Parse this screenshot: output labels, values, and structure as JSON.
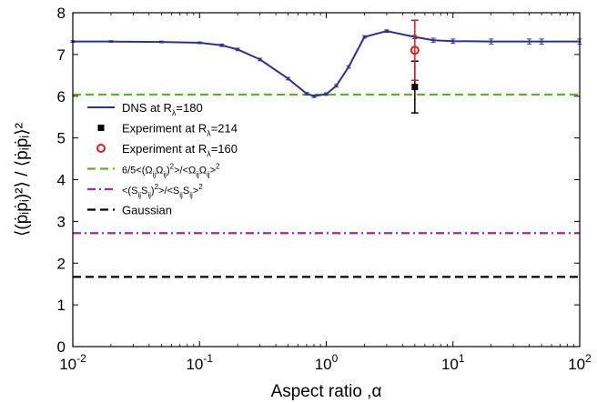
{
  "chart_data": {
    "type": "line",
    "xlabel": "Aspect ratio ,α",
    "ylabel": "⟨(ṗᵢṗᵢ)²⟩ / ⟨ṗᵢṗᵢ⟩²",
    "xscale": "log",
    "xlim": [
      0.01,
      100
    ],
    "ylim": [
      0,
      8
    ],
    "x_ticks": [
      0.01,
      0.1,
      1,
      10,
      100
    ],
    "x_tick_labels": [
      {
        "base": "10",
        "exp": "-2"
      },
      {
        "base": "10",
        "exp": "-1"
      },
      {
        "base": "10",
        "exp": "0"
      },
      {
        "base": "10",
        "exp": "1"
      },
      {
        "base": "10",
        "exp": "2"
      }
    ],
    "y_ticks": [
      0,
      1,
      2,
      3,
      4,
      5,
      6,
      7,
      8
    ],
    "y_tick_labels": [
      "0",
      "1",
      "2",
      "3",
      "4",
      "5",
      "6",
      "7",
      "8"
    ],
    "grid": false,
    "legend_position": "middle-left",
    "series": [
      {
        "kind": "line-errorbar",
        "color": "#2e3192",
        "legend": {
          "main": "DNS at  R",
          "sub": "λ",
          "rest": "=180"
        },
        "points": [
          {
            "x": 0.01,
            "y": 7.31,
            "err": 0.02
          },
          {
            "x": 0.02,
            "y": 7.31,
            "err": 0.02
          },
          {
            "x": 0.05,
            "y": 7.3,
            "err": 0.02
          },
          {
            "x": 0.1,
            "y": 7.28,
            "err": 0.02
          },
          {
            "x": 0.15,
            "y": 7.22,
            "err": 0.03
          },
          {
            "x": 0.2,
            "y": 7.12,
            "err": 0.03
          },
          {
            "x": 0.3,
            "y": 6.88,
            "err": 0.03
          },
          {
            "x": 0.5,
            "y": 6.42,
            "err": 0.03
          },
          {
            "x": 0.7,
            "y": 6.06,
            "err": 0.03
          },
          {
            "x": 0.8,
            "y": 6.0,
            "err": 0.03
          },
          {
            "x": 1.0,
            "y": 6.05,
            "err": 0.03
          },
          {
            "x": 1.2,
            "y": 6.25,
            "err": 0.03
          },
          {
            "x": 1.5,
            "y": 6.7,
            "err": 0.03
          },
          {
            "x": 2.0,
            "y": 7.42,
            "err": 0.03
          },
          {
            "x": 3.0,
            "y": 7.56,
            "err": 0.03
          },
          {
            "x": 5.0,
            "y": 7.42,
            "err": 0.04
          },
          {
            "x": 7.0,
            "y": 7.34,
            "err": 0.05
          },
          {
            "x": 10.0,
            "y": 7.32,
            "err": 0.05
          },
          {
            "x": 20.0,
            "y": 7.31,
            "err": 0.06
          },
          {
            "x": 40.0,
            "y": 7.31,
            "err": 0.06
          },
          {
            "x": 50.0,
            "y": 7.31,
            "err": 0.06
          },
          {
            "x": 100.0,
            "y": 7.31,
            "err": 0.06
          }
        ]
      },
      {
        "kind": "marker-square",
        "color": "#000000",
        "legend": {
          "main": "Experiment at R",
          "sub": "λ",
          "rest": "=214"
        },
        "points": [
          {
            "x": 5.0,
            "y": 6.22,
            "err": 0.62
          }
        ]
      },
      {
        "kind": "marker-circle",
        "color": "#e31a1c",
        "legend": {
          "main": "Experiment at R",
          "sub": "λ",
          "rest": "=160"
        },
        "points": [
          {
            "x": 5.0,
            "y": 7.1,
            "err": 0.72
          }
        ]
      },
      {
        "kind": "hline",
        "dash": "dash",
        "color": "#57b52b",
        "y": 6.04,
        "legend": {
          "main": "6/5<(Ω",
          "parts": [
            {
              "t": "6/5<(Ω"
            },
            {
              "t": "ij",
              "sub": true
            },
            {
              "t": "Ω"
            },
            {
              "t": "ij",
              "sub": true
            },
            {
              "t": ")"
            },
            {
              "t": "2",
              "sup": true
            },
            {
              "t": ">/<Ω"
            },
            {
              "t": "ij",
              "sub": true
            },
            {
              "t": "Ω"
            },
            {
              "t": "ij",
              "sub": true
            },
            {
              "t": ">"
            },
            {
              "t": "2",
              "sup": true
            }
          ]
        }
      },
      {
        "kind": "hline",
        "dash": "dashdot",
        "color": "#9b2c97",
        "y": 2.72,
        "legend": {
          "main": "<(S",
          "parts": [
            {
              "t": "<(S"
            },
            {
              "t": "ij",
              "sub": true
            },
            {
              "t": "S"
            },
            {
              "t": "ij",
              "sub": true
            },
            {
              "t": ")"
            },
            {
              "t": "2",
              "sup": true
            },
            {
              "t": ">/<S"
            },
            {
              "t": "ij",
              "sub": true
            },
            {
              "t": "S"
            },
            {
              "t": "ij",
              "sub": true
            },
            {
              "t": ">"
            },
            {
              "t": "2",
              "sup": true
            }
          ]
        }
      },
      {
        "kind": "hline",
        "dash": "dash",
        "color": "#000000",
        "y": 1.67,
        "legend": {
          "main": "Gaussian"
        }
      }
    ]
  }
}
